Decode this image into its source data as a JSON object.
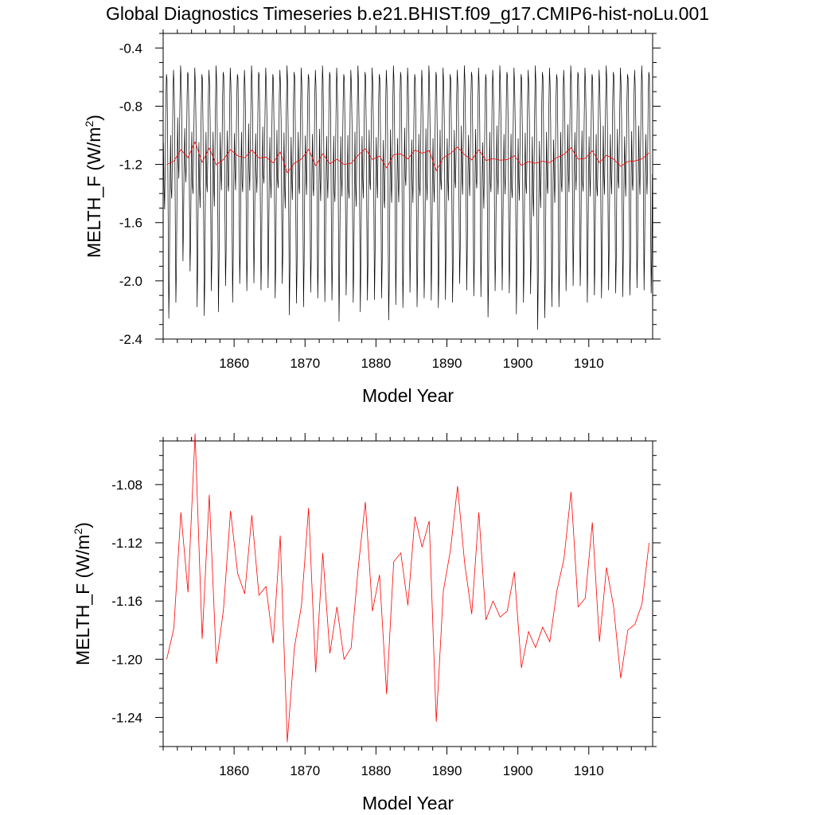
{
  "title": "Global Diagnostics Timeseries b.e21.BHIST.f09_g17.CMIP6-hist-noLu.001",
  "chart_data": [
    {
      "type": "line",
      "xlabel": "Model Year",
      "ylabel_main": "MELTH_F (W/m",
      "ylabel_sup": "2",
      "ylabel_close": ")",
      "xlim": [
        1850,
        1919
      ],
      "ylim": [
        -2.4,
        -0.3
      ],
      "xticks": [
        1860,
        1870,
        1880,
        1890,
        1900,
        1910
      ],
      "xtick_labels": [
        "1860",
        "1870",
        "1880",
        "1890",
        "1900",
        "1910"
      ],
      "yticks": [
        -0.4,
        -0.8,
        -1.2,
        -1.6,
        -2.0,
        -2.4
      ],
      "ytick_labels": [
        "-0.4",
        "-0.8",
        "-1.2",
        "-1.6",
        "-2.0",
        "-2.4"
      ],
      "grid": false,
      "series": [
        {
          "color": "#000000",
          "monthly_profile": [
            -0.95,
            -1.25,
            -1.35,
            -1.1,
            -0.75,
            -0.55,
            -0.62,
            -0.9,
            -1.45,
            -2.0,
            -1.75,
            -1.25
          ],
          "annual_minima": [
            -2.26,
            -2.18,
            -1.85,
            -1.95,
            -2.15,
            -2.24,
            -2.1,
            -2.2,
            -2.05,
            -2.12,
            -2.02,
            -2.1,
            -2.0,
            -2.08,
            -2.02,
            -2.12,
            -2.05,
            -2.22,
            -2.17,
            -2.15,
            -2.08,
            -2.15,
            -2.13,
            -2.15,
            -2.25,
            -2.1,
            -2.18,
            -2.2,
            -2.15,
            -2.1,
            -2.12,
            -2.3,
            -2.15,
            -2.2,
            -2.05,
            -2.18,
            -2.15,
            -2.12,
            -2.2,
            -2.1,
            -2.15,
            -2.05,
            -2.05,
            -2.12,
            -2.08,
            -2.25,
            -2.1,
            -2.05,
            -2.1,
            -2.2,
            -2.15,
            -2.12,
            -2.32,
            -2.27,
            -2.15,
            -2.18,
            -2.1,
            -2.02,
            -2.05,
            -2.12,
            -2.1,
            -2.15,
            -2.05,
            -2.1,
            -2.08,
            -2.1,
            -2.08,
            -2.05,
            -2.1
          ]
        },
        {
          "color": "#ff0000",
          "x": [
            1850.5,
            1851.5,
            1852.5,
            1853.5,
            1854.5,
            1855.5,
            1856.5,
            1857.5,
            1858.5,
            1859.5,
            1860.5,
            1861.5,
            1862.5,
            1863.5,
            1864.5,
            1865.5,
            1866.5,
            1867.5,
            1868.5,
            1869.5,
            1870.5,
            1871.5,
            1872.5,
            1873.5,
            1874.5,
            1875.5,
            1876.5,
            1877.5,
            1878.5,
            1879.5,
            1880.5,
            1881.5,
            1882.5,
            1883.5,
            1884.5,
            1885.5,
            1886.5,
            1887.5,
            1888.5,
            1889.5,
            1890.5,
            1891.5,
            1892.5,
            1893.5,
            1894.5,
            1895.5,
            1896.5,
            1897.5,
            1898.5,
            1899.5,
            1900.5,
            1901.5,
            1902.5,
            1903.5,
            1904.5,
            1905.5,
            1906.5,
            1907.5,
            1908.5,
            1909.5,
            1910.5,
            1911.5,
            1912.5,
            1913.5,
            1914.5,
            1915.5,
            1916.5,
            1917.5,
            1918.5
          ],
          "values": [
            -1.2,
            -1.179,
            -1.099,
            -1.154,
            -1.045,
            -1.186,
            -1.087,
            -1.203,
            -1.166,
            -1.098,
            -1.141,
            -1.155,
            -1.101,
            -1.156,
            -1.15,
            -1.189,
            -1.115,
            -1.257,
            -1.192,
            -1.163,
            -1.096,
            -1.209,
            -1.127,
            -1.196,
            -1.164,
            -1.2,
            -1.192,
            -1.137,
            -1.092,
            -1.167,
            -1.142,
            -1.224,
            -1.133,
            -1.127,
            -1.163,
            -1.102,
            -1.123,
            -1.105,
            -1.243,
            -1.153,
            -1.125,
            -1.081,
            -1.134,
            -1.169,
            -1.099,
            -1.173,
            -1.16,
            -1.171,
            -1.167,
            -1.14,
            -1.206,
            -1.181,
            -1.192,
            -1.178,
            -1.188,
            -1.153,
            -1.131,
            -1.085,
            -1.164,
            -1.158,
            -1.106,
            -1.188,
            -1.137,
            -1.164,
            -1.213,
            -1.18,
            -1.176,
            -1.162,
            -1.12
          ]
        }
      ]
    },
    {
      "type": "line",
      "xlabel": "Model Year",
      "ylabel_main": "MELTH_F (W/m",
      "ylabel_sup": "2",
      "ylabel_close": ")",
      "xlim": [
        1850,
        1919
      ],
      "ylim": [
        -1.26,
        -1.05
      ],
      "xticks": [
        1860,
        1870,
        1880,
        1890,
        1900,
        1910
      ],
      "xtick_labels": [
        "1860",
        "1870",
        "1880",
        "1890",
        "1900",
        "1910"
      ],
      "yticks": [
        -1.08,
        -1.12,
        -1.16,
        -1.2,
        -1.24
      ],
      "ytick_labels": [
        "-1.08",
        "-1.12",
        "-1.16",
        "-1.20",
        "-1.24"
      ],
      "grid": false,
      "series": [
        {
          "color": "#ff0000",
          "x": [
            1850.5,
            1851.5,
            1852.5,
            1853.5,
            1854.5,
            1855.5,
            1856.5,
            1857.5,
            1858.5,
            1859.5,
            1860.5,
            1861.5,
            1862.5,
            1863.5,
            1864.5,
            1865.5,
            1866.5,
            1867.5,
            1868.5,
            1869.5,
            1870.5,
            1871.5,
            1872.5,
            1873.5,
            1874.5,
            1875.5,
            1876.5,
            1877.5,
            1878.5,
            1879.5,
            1880.5,
            1881.5,
            1882.5,
            1883.5,
            1884.5,
            1885.5,
            1886.5,
            1887.5,
            1888.5,
            1889.5,
            1890.5,
            1891.5,
            1892.5,
            1893.5,
            1894.5,
            1895.5,
            1896.5,
            1897.5,
            1898.5,
            1899.5,
            1900.5,
            1901.5,
            1902.5,
            1903.5,
            1904.5,
            1905.5,
            1906.5,
            1907.5,
            1908.5,
            1909.5,
            1910.5,
            1911.5,
            1912.5,
            1913.5,
            1914.5,
            1915.5,
            1916.5,
            1917.5,
            1918.5
          ],
          "values": [
            -1.2,
            -1.179,
            -1.099,
            -1.154,
            -1.045,
            -1.186,
            -1.087,
            -1.203,
            -1.166,
            -1.098,
            -1.141,
            -1.155,
            -1.101,
            -1.156,
            -1.15,
            -1.189,
            -1.115,
            -1.257,
            -1.192,
            -1.163,
            -1.096,
            -1.209,
            -1.127,
            -1.196,
            -1.164,
            -1.2,
            -1.192,
            -1.137,
            -1.092,
            -1.167,
            -1.142,
            -1.224,
            -1.133,
            -1.127,
            -1.163,
            -1.102,
            -1.123,
            -1.105,
            -1.243,
            -1.153,
            -1.125,
            -1.081,
            -1.134,
            -1.169,
            -1.099,
            -1.173,
            -1.16,
            -1.171,
            -1.167,
            -1.14,
            -1.206,
            -1.181,
            -1.192,
            -1.178,
            -1.188,
            -1.153,
            -1.131,
            -1.085,
            -1.164,
            -1.158,
            -1.106,
            -1.188,
            -1.137,
            -1.164,
            -1.213,
            -1.18,
            -1.176,
            -1.162,
            -1.12
          ]
        }
      ]
    }
  ]
}
